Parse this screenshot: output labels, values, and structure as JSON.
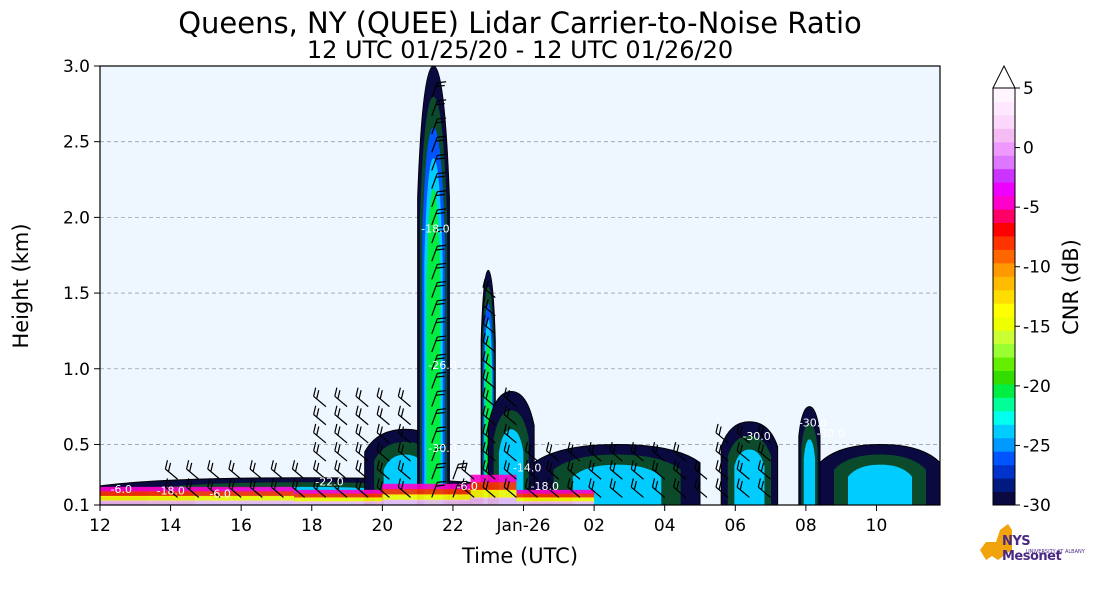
{
  "chart_data": {
    "type": "heatmap",
    "title": "Queens, NY (QUEE) Lidar Carrier-to-Noise Ratio",
    "subtitle": "12 UTC 01/25/20 - 12 UTC 01/26/20",
    "xlabel": "Time (UTC)",
    "ylabel": "Height (km)",
    "x_ticks": [
      "12",
      "14",
      "16",
      "18",
      "20",
      "22",
      "Jan-26",
      "02",
      "04",
      "06",
      "08",
      "10"
    ],
    "x_tick_hours": [
      0,
      2,
      4,
      6,
      8,
      10,
      12,
      14,
      16,
      18,
      20,
      22
    ],
    "xlim_hours_since_start": [
      0,
      23.8
    ],
    "y_ticks": [
      "0.1",
      "0.5",
      "1.0",
      "1.5",
      "2.0",
      "2.5",
      "3.0"
    ],
    "y_tick_values": [
      0.1,
      0.5,
      1.0,
      1.5,
      2.0,
      2.5,
      3.0
    ],
    "ylim": [
      0.1,
      3.0
    ],
    "grid": "horizontal dashed",
    "colorbar": {
      "label": "CNR (dB)",
      "range": [
        -30,
        5
      ],
      "ticks": [
        "5",
        "0",
        "-5",
        "-10",
        "-15",
        "-20",
        "-25",
        "-30"
      ],
      "tick_values": [
        5,
        0,
        -5,
        -10,
        -15,
        -20,
        -25,
        -30
      ],
      "colors": [
        "#0a0a40",
        "#001a80",
        "#0033cc",
        "#0055ff",
        "#0099ff",
        "#00ccff",
        "#00ffee",
        "#00ff99",
        "#00ee44",
        "#33dd00",
        "#66ee00",
        "#99ff33",
        "#ccff33",
        "#eeff00",
        "#ffff00",
        "#ffdd00",
        "#ffbb00",
        "#ff9900",
        "#ff6600",
        "#ff3300",
        "#ff0000",
        "#ff0066",
        "#ff00cc",
        "#ee00ff",
        "#cc33ff",
        "#dd77ff",
        "#ee99ff",
        "#f5bbf5",
        "#fbd7fb",
        "#ffe8ff",
        "#fff5ff"
      ]
    },
    "contour_labels": [
      "-6.0",
      "-18.0",
      "-22.0",
      "-6.0",
      "-30.0",
      "-26.0",
      "-18.0",
      "-6.0",
      "-18.0",
      "-14.0",
      "-30.0",
      "-30.0",
      "-30.0"
    ],
    "cloud_regions": [
      {
        "x0": 0.0,
        "x1": 11.5,
        "y_top": 0.28
      },
      {
        "x0": 7.5,
        "x1": 9.8,
        "y_top": 0.6
      },
      {
        "x0": 9.0,
        "x1": 9.9,
        "y_top": 3.0
      },
      {
        "x0": 10.8,
        "x1": 11.2,
        "y_top": 1.65
      },
      {
        "x0": 11.0,
        "x1": 12.3,
        "y_top": 0.85
      },
      {
        "x0": 12.3,
        "x1": 17.0,
        "y_top": 0.5
      },
      {
        "x0": 17.6,
        "x1": 19.2,
        "y_top": 0.65
      },
      {
        "x0": 19.8,
        "x1": 20.4,
        "y_top": 0.75
      },
      {
        "x0": 20.4,
        "x1": 23.8,
        "y_top": 0.5
      }
    ]
  },
  "logo": {
    "text": "NYS Mesonet",
    "sub": "UNIVERSITY AT ALBANY"
  }
}
